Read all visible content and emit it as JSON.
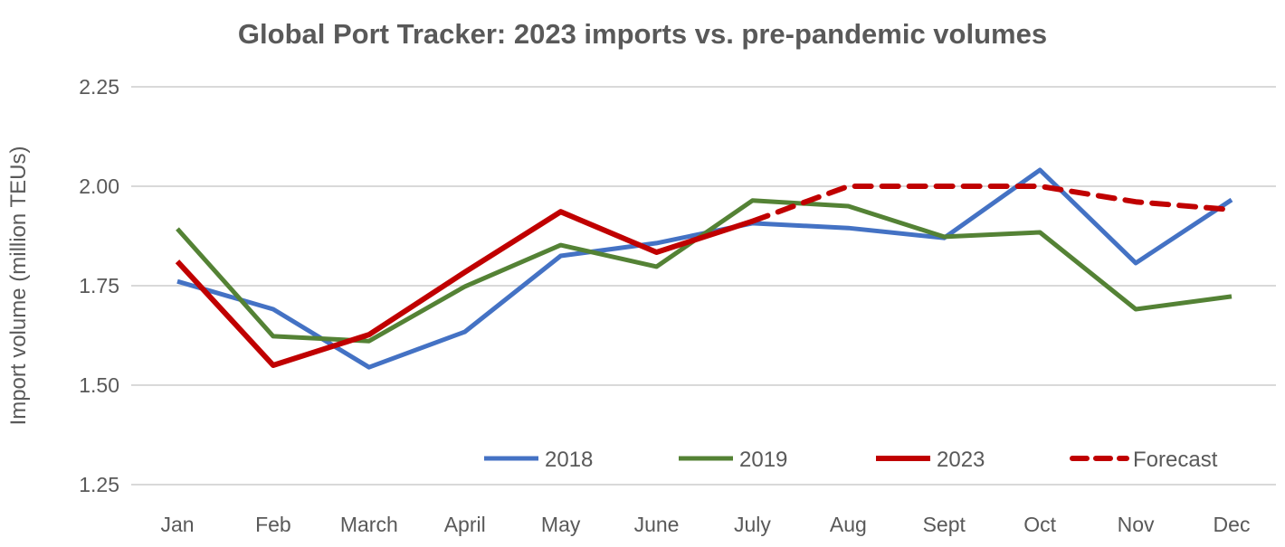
{
  "chart_data": {
    "type": "line",
    "title": "Global Port Tracker: 2023 imports vs. pre-pandemic volumes",
    "xlabel": "",
    "ylabel": "Import volume (million TEUs)",
    "categories": [
      "Jan",
      "Feb",
      "March",
      "April",
      "May",
      "June",
      "July",
      "Aug",
      "Sept",
      "Oct",
      "Nov",
      "Dec"
    ],
    "ylim": [
      1.25,
      2.25
    ],
    "yticks": [
      "1.25",
      "1.50",
      "1.75",
      "2.00",
      "2.25"
    ],
    "grid": true,
    "legend_position": "bottom-inside",
    "series": [
      {
        "name": "2018",
        "color": "#4472C4",
        "dashed": false,
        "values": [
          1.761,
          1.691,
          1.545,
          1.634,
          1.825,
          1.857,
          1.907,
          1.895,
          1.87,
          2.041,
          1.807,
          1.966
        ]
      },
      {
        "name": "2019",
        "color": "#548235",
        "dashed": false,
        "values": [
          1.893,
          1.623,
          1.611,
          1.748,
          1.852,
          1.798,
          1.964,
          1.95,
          1.873,
          1.884,
          1.691,
          1.723
        ]
      },
      {
        "name": "2023",
        "color": "#C00000",
        "dashed": false,
        "values": [
          1.811,
          1.55,
          1.627,
          1.784,
          1.936,
          1.834,
          1.912,
          null,
          null,
          null,
          null,
          null
        ]
      },
      {
        "name": "Forecast",
        "color": "#C00000",
        "dashed": true,
        "values": [
          null,
          null,
          null,
          null,
          null,
          null,
          1.912,
          2.0,
          2.0,
          2.0,
          1.961,
          1.941
        ]
      }
    ]
  }
}
